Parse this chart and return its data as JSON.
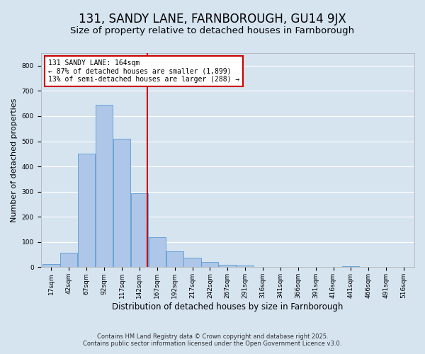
{
  "title": "131, SANDY LANE, FARNBOROUGH, GU14 9JX",
  "subtitle": "Size of property relative to detached houses in Farnborough",
  "xlabel": "Distribution of detached houses by size in Farnborough",
  "ylabel": "Number of detached properties",
  "categories": [
    "17sqm",
    "42sqm",
    "67sqm",
    "92sqm",
    "117sqm",
    "142sqm",
    "167sqm",
    "192sqm",
    "217sqm",
    "242sqm",
    "267sqm",
    "291sqm",
    "316sqm",
    "341sqm",
    "366sqm",
    "391sqm",
    "416sqm",
    "441sqm",
    "466sqm",
    "491sqm",
    "516sqm"
  ],
  "values": [
    12,
    58,
    450,
    645,
    510,
    293,
    120,
    63,
    37,
    22,
    9,
    8,
    0,
    0,
    0,
    0,
    0,
    5,
    0,
    0,
    0
  ],
  "bar_color": "#aec6e8",
  "bar_edge_color": "#5b9bd5",
  "background_color": "#d6e4f0",
  "plot_bg_color": "#d6e4f0",
  "grid_color": "#ffffff",
  "annotation_title": "131 SANDY LANE: 164sqm",
  "annotation_line1": "← 87% of detached houses are smaller (1,899)",
  "annotation_line2": "13% of semi-detached houses are larger (288) →",
  "annotation_box_color": "#ffffff",
  "annotation_border_color": "#cc0000",
  "redline_color": "#cc0000",
  "ylim": [
    0,
    850
  ],
  "yticks": [
    0,
    100,
    200,
    300,
    400,
    500,
    600,
    700,
    800
  ],
  "footnote_line1": "Contains HM Land Registry data © Crown copyright and database right 2025.",
  "footnote_line2": "Contains public sector information licensed under the Open Government Licence v3.0.",
  "title_fontsize": 12,
  "subtitle_fontsize": 9.5,
  "xlabel_fontsize": 8.5,
  "ylabel_fontsize": 8,
  "tick_fontsize": 6.5,
  "annot_fontsize": 7,
  "footnote_fontsize": 6
}
